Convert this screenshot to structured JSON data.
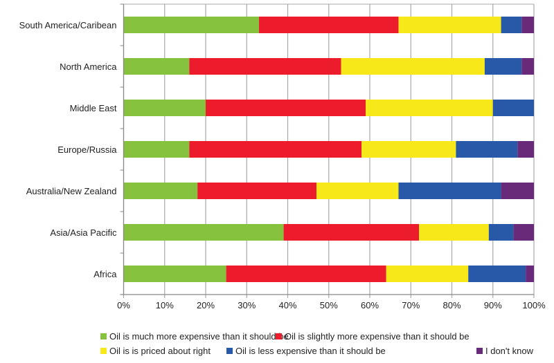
{
  "chart_data": {
    "type": "bar",
    "orientation": "horizontal",
    "stacked": true,
    "normalized": true,
    "title": "",
    "xlabel": "",
    "ylabel": "",
    "xlim": [
      0,
      100
    ],
    "grid": true,
    "legend_position": "bottom",
    "categories": [
      "South America/Caribean",
      "North America",
      "Middle East",
      "Europe/Russia",
      "Australia/New Zealand",
      "Asia/Asia Pacific",
      "Africa"
    ],
    "x_ticks": [
      "0%",
      "10%",
      "20%",
      "30%",
      "40%",
      "50%",
      "60%",
      "70%",
      "80%",
      "90%",
      "100%"
    ],
    "series": [
      {
        "name": "Oil is much more expensive than it should be",
        "color": "#86c23d",
        "values": [
          33,
          16,
          20,
          16,
          18,
          39,
          25
        ]
      },
      {
        "name": "Oil is slightly more expensive than it should be",
        "color": "#ec1c2c",
        "values": [
          34,
          37,
          39,
          42,
          29,
          33,
          39
        ]
      },
      {
        "name": "Oil is is priced about right",
        "color": "#f7e81a",
        "values": [
          25,
          35,
          31,
          23,
          20,
          17,
          20
        ]
      },
      {
        "name": "Oil is less expensive than it should be",
        "color": "#2858a8",
        "values": [
          5,
          9,
          10,
          15,
          25,
          6,
          14
        ]
      },
      {
        "name": "I don't know",
        "color": "#6a2a7a",
        "values": [
          3,
          3,
          0,
          4,
          8,
          5,
          2
        ]
      }
    ]
  }
}
